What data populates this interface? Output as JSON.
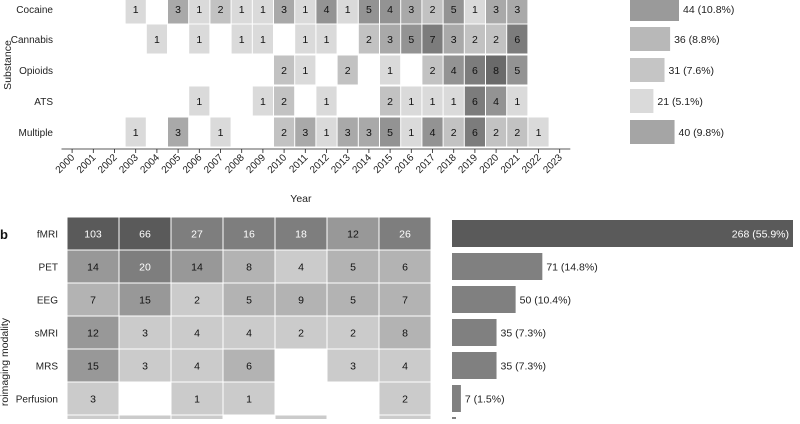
{
  "chart_data": [
    {
      "type": "heatmap",
      "panel_label": "",
      "xlabel": "Year",
      "ylabel": "Substance",
      "x": [
        "2000",
        "2001",
        "2002",
        "2003",
        "2004",
        "2005",
        "2006",
        "2007",
        "2008",
        "2009",
        "2010",
        "2011",
        "2012",
        "2013",
        "2014",
        "2015",
        "2016",
        "2017",
        "2018",
        "2019",
        "2020",
        "2021",
        "2022",
        "2023"
      ],
      "rows": [
        {
          "label": "Cocaine",
          "values": [
            null,
            null,
            null,
            1,
            null,
            3,
            1,
            2,
            1,
            1,
            3,
            1,
            4,
            1,
            5,
            4,
            3,
            2,
            5,
            1,
            3,
            3,
            null,
            null
          ]
        },
        {
          "label": "Cannabis",
          "values": [
            null,
            null,
            null,
            null,
            1,
            null,
            1,
            null,
            1,
            1,
            null,
            1,
            1,
            null,
            2,
            3,
            5,
            7,
            3,
            2,
            2,
            6,
            null,
            null
          ]
        },
        {
          "label": "Opioids",
          "values": [
            null,
            null,
            null,
            null,
            null,
            null,
            null,
            null,
            null,
            null,
            2,
            1,
            null,
            2,
            null,
            1,
            null,
            2,
            4,
            6,
            8,
            5,
            null,
            null
          ]
        },
        {
          "label": "ATS",
          "values": [
            null,
            null,
            null,
            null,
            null,
            null,
            1,
            null,
            null,
            1,
            2,
            null,
            1,
            null,
            null,
            2,
            1,
            1,
            1,
            6,
            4,
            1,
            null,
            null
          ]
        },
        {
          "label": "Multiple",
          "values": [
            null,
            null,
            null,
            1,
            null,
            3,
            null,
            1,
            null,
            null,
            2,
            3,
            1,
            3,
            3,
            5,
            1,
            4,
            2,
            6,
            2,
            2,
            1,
            null
          ]
        }
      ],
      "totals": [
        {
          "label": "44 (10.8%)",
          "value": 44
        },
        {
          "label": "36 (8.8%)",
          "value": 36
        },
        {
          "label": "31 (7.6%)",
          "value": 31
        },
        {
          "label": "21 (5.1%)",
          "value": 21
        },
        {
          "label": "40 (9.8%)",
          "value": 40
        }
      ]
    },
    {
      "type": "heatmap",
      "panel_label": "b",
      "xlabel": "",
      "ylabel": "roimaging modality",
      "rows": [
        {
          "label": "fMRI",
          "values": [
            103,
            66,
            27,
            16,
            18,
            12,
            26
          ]
        },
        {
          "label": "PET",
          "values": [
            14,
            20,
            14,
            8,
            4,
            5,
            6
          ]
        },
        {
          "label": "EEG",
          "values": [
            7,
            15,
            2,
            5,
            9,
            5,
            7
          ]
        },
        {
          "label": "sMRI",
          "values": [
            12,
            3,
            4,
            4,
            2,
            2,
            8
          ]
        },
        {
          "label": "MRS",
          "values": [
            15,
            3,
            4,
            6,
            null,
            3,
            4
          ]
        },
        {
          "label": "Perfusion",
          "values": [
            3,
            null,
            1,
            1,
            null,
            null,
            2
          ]
        }
      ],
      "totals": [
        {
          "label": "268 (55.9%)",
          "value": 268
        },
        {
          "label": "71 (14.8%)",
          "value": 71
        },
        {
          "label": "50 (10.4%)",
          "value": 50
        },
        {
          "label": "35 (7.3%)",
          "value": 35
        },
        {
          "label": "35 (7.3%)",
          "value": 35
        },
        {
          "label": "7 (1.5%)",
          "value": 7
        }
      ]
    }
  ]
}
